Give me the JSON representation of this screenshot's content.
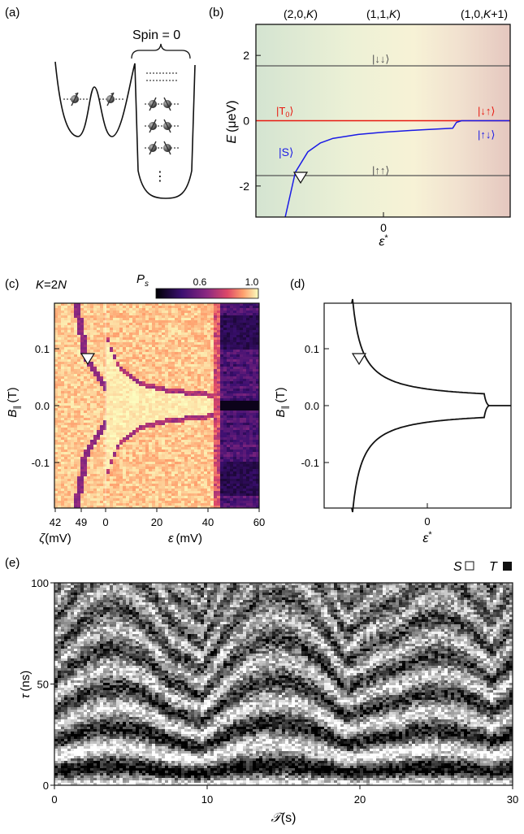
{
  "panel_labels": {
    "a": "(a)",
    "b": "(b)",
    "c": "(c)",
    "d": "(d)",
    "e": "(e)"
  },
  "panel_a": {
    "spin_label": "Spin = 0",
    "ellipsis": "⋮"
  },
  "panel_b": {
    "region_labels": [
      "(2,0,",
      "(1,1,",
      "(1,0,"
    ],
    "region_k": [
      "K",
      "K",
      "K"
    ],
    "region_suffix": [
      ")",
      ")",
      "+1)"
    ],
    "ylabel_E": "E",
    "ylabel_unit": "(μeV)",
    "xlabel": "ε",
    "xlabel_sup": "*",
    "state_dd": "|↓↓⟩",
    "state_t0": "|T",
    "state_t0_sub": "0",
    "state_t0_end": "⟩",
    "state_s": "|S⟩",
    "state_du": "|↓↑⟩",
    "state_ud": "|↑↓⟩",
    "state_uu": "|↑↑⟩",
    "colors": {
      "t0": "#e8180f",
      "s": "#1a1ae6",
      "triplet": "#555555"
    }
  },
  "panel_c": {
    "k_label_prefix": "K",
    "k_label_mid": "=2",
    "k_label_n": "N",
    "colorbar_label": "P",
    "colorbar_sub": "s",
    "colorbar_ticks": [
      "0.6",
      "1.0"
    ],
    "ylabel": "B",
    "ylabel_sub": "∥",
    "ylabel_unit": "(T)",
    "xlabel_zeta": "ζ",
    "xlabel_zeta_unit": "(mV)",
    "xlabel_eps": "ε",
    "xlabel_eps_unit": "(mV)"
  },
  "panel_d": {
    "ylabel": "B",
    "ylabel_sub": "∥",
    "ylabel_unit": "(T)",
    "xlabel": "ε",
    "xlabel_sup": "*"
  },
  "panel_e": {
    "legend_s": "S",
    "legend_t": "T",
    "ylabel": "τ",
    "ylabel_unit": "(ns)",
    "xlabel": "𝒯",
    "xlabel_unit": "(s)"
  },
  "chart_data": [
    {
      "panel": "b",
      "type": "line",
      "xlabel": "ε*",
      "ylabel": "E (μeV)",
      "ylim": [
        -2.95,
        2.95
      ],
      "y_ticks": [
        "2",
        "0",
        "-2"
      ],
      "x_ticks": [
        "0"
      ],
      "series": [
        {
          "name": "|↓↓⟩",
          "values": [
            1.68
          ]
        },
        {
          "name": "|T0⟩",
          "values": [
            0.0
          ]
        },
        {
          "name": "|↑↑⟩",
          "values": [
            -1.68
          ]
        },
        {
          "name": "|S⟩",
          "x": [
            -0.78,
            -0.7,
            -0.6,
            -0.5,
            -0.4,
            -0.2,
            0.0,
            0.3,
            0.55,
            0.58,
            0.62,
            1.0
          ],
          "values": [
            -2.95,
            -1.58,
            -0.95,
            -0.68,
            -0.54,
            -0.42,
            -0.35,
            -0.28,
            -0.23,
            -0.05,
            0.0,
            0.0
          ]
        }
      ]
    },
    {
      "panel": "c",
      "type": "heatmap",
      "xlabel": "ε (mV)",
      "x_ticks": [
        "0",
        "20",
        "40",
        "60"
      ],
      "zeta_ticks": [
        "42",
        "49"
      ],
      "ylabel": "B∥ (T)",
      "y_ticks": [
        "0.1",
        "0.0",
        "-0.1"
      ],
      "ylim": [
        -0.18,
        0.18
      ],
      "colorbar_ticks": [
        "0.6",
        "1.0"
      ]
    },
    {
      "panel": "d",
      "type": "line",
      "xlabel": "ε*",
      "x_ticks": [
        "0"
      ],
      "ylabel": "B∥ (T)",
      "y_ticks": [
        "0.1",
        "0.0",
        "-0.1"
      ],
      "ylim": [
        -0.18,
        0.18
      ]
    },
    {
      "panel": "e",
      "type": "heatmap",
      "xlabel": "𝒯 (s)",
      "x_ticks": [
        "0",
        "10",
        "20",
        "30"
      ],
      "xlim": [
        0,
        30
      ],
      "ylabel": "τ (ns)",
      "y_ticks": [
        "0",
        "50",
        "100"
      ],
      "ylim": [
        0,
        100
      ]
    }
  ]
}
